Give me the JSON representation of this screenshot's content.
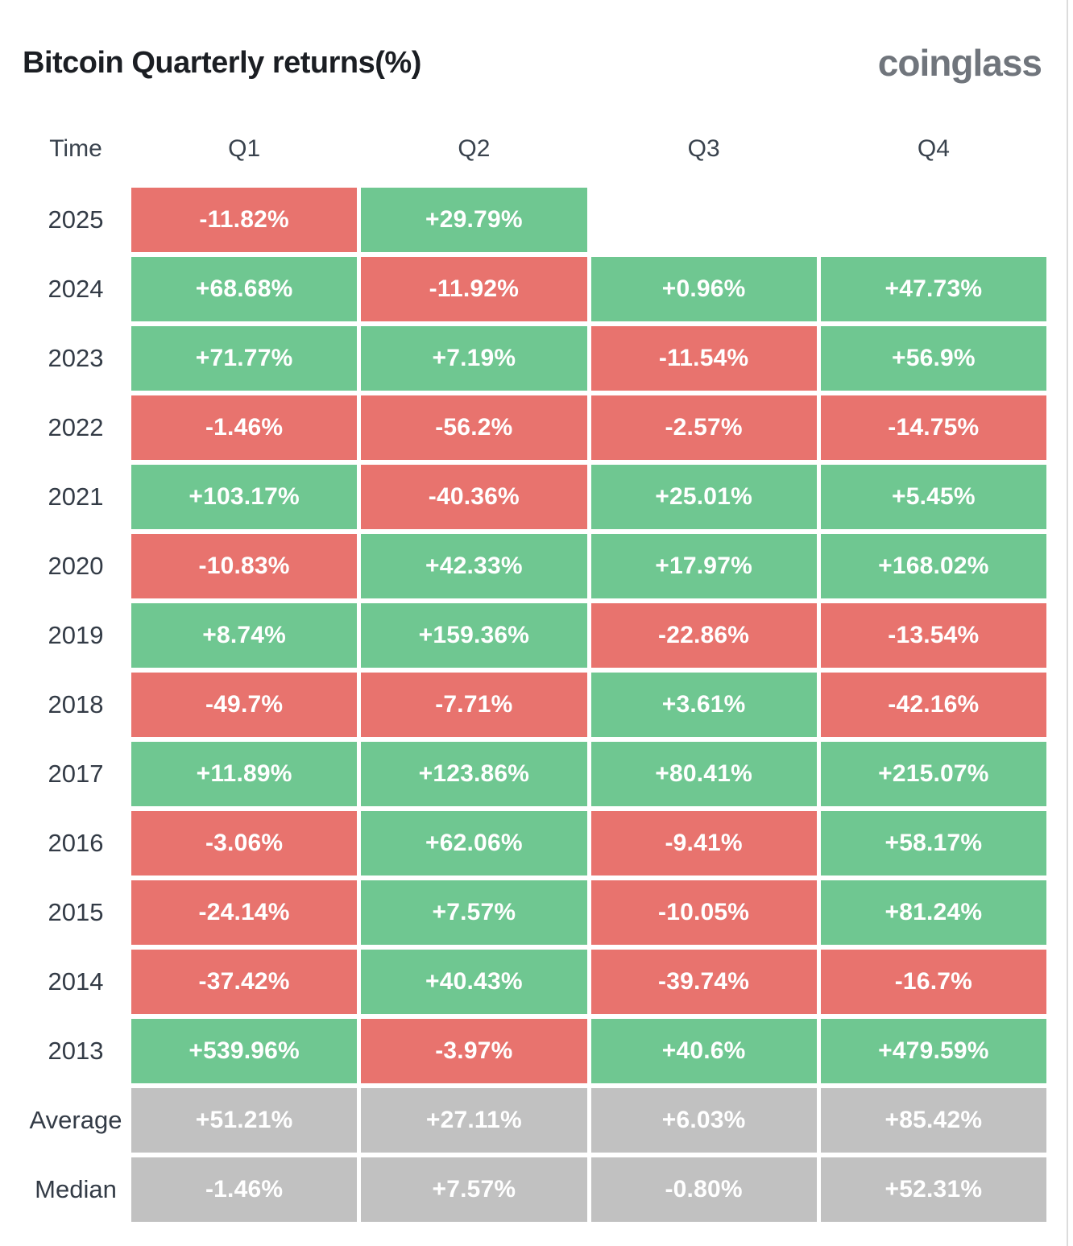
{
  "header": {
    "title": "Bitcoin Quarterly returns(%)",
    "logo_text": "coinglass"
  },
  "table": {
    "columns": [
      "Time",
      "Q1",
      "Q2",
      "Q3",
      "Q4"
    ],
    "rows": [
      {
        "label": "2025",
        "type": "year",
        "values": [
          "-11.82%",
          "+29.79%",
          null,
          null
        ]
      },
      {
        "label": "2024",
        "type": "year",
        "values": [
          "+68.68%",
          "-11.92%",
          "+0.96%",
          "+47.73%"
        ]
      },
      {
        "label": "2023",
        "type": "year",
        "values": [
          "+71.77%",
          "+7.19%",
          "-11.54%",
          "+56.9%"
        ]
      },
      {
        "label": "2022",
        "type": "year",
        "values": [
          "-1.46%",
          "-56.2%",
          "-2.57%",
          "-14.75%"
        ]
      },
      {
        "label": "2021",
        "type": "year",
        "values": [
          "+103.17%",
          "-40.36%",
          "+25.01%",
          "+5.45%"
        ]
      },
      {
        "label": "2020",
        "type": "year",
        "values": [
          "-10.83%",
          "+42.33%",
          "+17.97%",
          "+168.02%"
        ]
      },
      {
        "label": "2019",
        "type": "year",
        "values": [
          "+8.74%",
          "+159.36%",
          "-22.86%",
          "-13.54%"
        ]
      },
      {
        "label": "2018",
        "type": "year",
        "values": [
          "-49.7%",
          "-7.71%",
          "+3.61%",
          "-42.16%"
        ]
      },
      {
        "label": "2017",
        "type": "year",
        "values": [
          "+11.89%",
          "+123.86%",
          "+80.41%",
          "+215.07%"
        ]
      },
      {
        "label": "2016",
        "type": "year",
        "values": [
          "-3.06%",
          "+62.06%",
          "-9.41%",
          "+58.17%"
        ]
      },
      {
        "label": "2015",
        "type": "year",
        "values": [
          "-24.14%",
          "+7.57%",
          "-10.05%",
          "+81.24%"
        ]
      },
      {
        "label": "2014",
        "type": "year",
        "values": [
          "-37.42%",
          "+40.43%",
          "-39.74%",
          "-16.7%"
        ]
      },
      {
        "label": "2013",
        "type": "year",
        "values": [
          "+539.96%",
          "-3.97%",
          "+40.6%",
          "+479.59%"
        ]
      },
      {
        "label": "Average",
        "type": "summary",
        "values": [
          "+51.21%",
          "+27.11%",
          "+6.03%",
          "+85.42%"
        ]
      },
      {
        "label": "Median",
        "type": "summary",
        "values": [
          "-1.46%",
          "+7.57%",
          "-0.80%",
          "+52.31%"
        ]
      }
    ]
  },
  "colors": {
    "positive": "#6fc791",
    "negative": "#e8736e",
    "summary": "#c1c1c1",
    "title_text": "#1b1e23",
    "label_text": "#333b46",
    "logo_text": "#70757c"
  },
  "chart_data": {
    "type": "heatmap",
    "title": "Bitcoin Quarterly returns(%)",
    "source_label": "coinglass",
    "columns": [
      "Q1",
      "Q2",
      "Q3",
      "Q4"
    ],
    "row_labels": [
      "2025",
      "2024",
      "2023",
      "2022",
      "2021",
      "2020",
      "2019",
      "2018",
      "2017",
      "2016",
      "2015",
      "2014",
      "2013",
      "Average",
      "Median"
    ],
    "values_pct": [
      [
        -11.82,
        29.79,
        null,
        null
      ],
      [
        68.68,
        -11.92,
        0.96,
        47.73
      ],
      [
        71.77,
        7.19,
        -11.54,
        56.9
      ],
      [
        -1.46,
        -56.2,
        -2.57,
        -14.75
      ],
      [
        103.17,
        -40.36,
        25.01,
        5.45
      ],
      [
        -10.83,
        42.33,
        17.97,
        168.02
      ],
      [
        8.74,
        159.36,
        -22.86,
        -13.54
      ],
      [
        -49.7,
        -7.71,
        3.61,
        -42.16
      ],
      [
        11.89,
        123.86,
        80.41,
        215.07
      ],
      [
        -3.06,
        62.06,
        -9.41,
        58.17
      ],
      [
        -24.14,
        7.57,
        -10.05,
        81.24
      ],
      [
        -37.42,
        40.43,
        -39.74,
        -16.7
      ],
      [
        539.96,
        -3.97,
        40.6,
        479.59
      ],
      [
        51.21,
        27.11,
        6.03,
        85.42
      ],
      [
        -1.46,
        7.57,
        -0.8,
        52.31
      ]
    ],
    "color_rule": "green = positive quarterly return, red = negative quarterly return, gray = Average/Median summary rows",
    "legend_position": "none",
    "grid": false
  }
}
